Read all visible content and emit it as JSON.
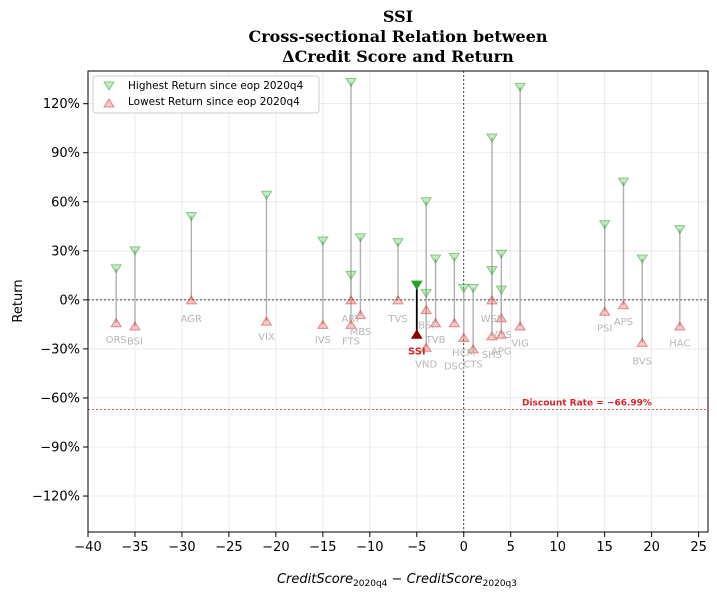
{
  "title_lines": [
    "SSI",
    "Cross-sectional Relation between",
    "ΔCredit Score and Return"
  ],
  "xlabel_base": "CreditScore",
  "xlabel_sub1": "2020q4",
  "xlabel_mid": " − ",
  "xlabel_base2": "CreditScore",
  "xlabel_sub2": "2020q3",
  "ylabel": "Return",
  "legend": {
    "high_label": "Highest Return since eop 2020q4",
    "low_label": "Lowest Return since eop 2020q4"
  },
  "discount_label": "Discount Rate = −66.99%",
  "colors": {
    "high": "#2ca02c",
    "low": "#d62728",
    "stem": "#b0b0b0",
    "main_stem": "#000000",
    "discount": "#d62728"
  },
  "chart_data": {
    "type": "scatter",
    "title": "SSI\nCross-sectional Relation between\nΔCredit Score and Return",
    "xlim": [
      -40,
      26
    ],
    "ylim": [
      -142,
      140
    ],
    "x_ticks": [
      -40,
      -35,
      -30,
      -25,
      -20,
      -15,
      -10,
      -5,
      0,
      5,
      10,
      15,
      20,
      25
    ],
    "x_tick_labels": [
      "−40",
      "−35",
      "−30",
      "−25",
      "−20",
      "−15",
      "−10",
      "−5",
      "0",
      "5",
      "10",
      "15",
      "20",
      "25"
    ],
    "y_ticks": [
      -120,
      -90,
      -60,
      -30,
      0,
      30,
      60,
      90,
      120
    ],
    "y_tick_labels": [
      "−120%",
      "−90%",
      "−60%",
      "−30%",
      "0%",
      "30%",
      "60%",
      "90%",
      "120%"
    ],
    "grid": true,
    "legend_position": "top-left",
    "discount_rate": -66.99,
    "main_ticker": "SSI",
    "points": [
      {
        "ticker": "ORS",
        "x": -37,
        "high": 19,
        "low": -14
      },
      {
        "ticker": "BSI",
        "x": -35,
        "high": 30,
        "low": -16
      },
      {
        "ticker": "AGR",
        "x": -29,
        "high": 51,
        "low": 0
      },
      {
        "ticker": "VIX",
        "x": -21,
        "high": 64,
        "low": -13
      },
      {
        "ticker": "IVS",
        "x": -15,
        "high": 36,
        "low": -15
      },
      {
        "ticker": "ART",
        "x": -12,
        "high": 133,
        "low": 0
      },
      {
        "ticker": "FTS",
        "x": -12,
        "high": 15,
        "low": -15
      },
      {
        "ticker": "MBS",
        "x": -11,
        "high": 38,
        "low": -9
      },
      {
        "ticker": "TVS",
        "x": -7,
        "high": 35,
        "low": 0
      },
      {
        "ticker": "SSI",
        "x": -5,
        "high": 9,
        "low": -21
      },
      {
        "ticker": "BSI",
        "x": -4,
        "high": 4,
        "low": -6
      },
      {
        "ticker": "VND",
        "x": -4,
        "high": 60,
        "low": -29
      },
      {
        "ticker": "TVB",
        "x": -3,
        "high": 25,
        "low": -14
      },
      {
        "ticker": "DSC",
        "x": -1,
        "high": 26,
        "low": -14
      },
      {
        "ticker": "HCM",
        "x": 0,
        "high": 7,
        "low": -23
      },
      {
        "ticker": "CTS",
        "x": 1,
        "high": 7,
        "low": -30
      },
      {
        "ticker": "WSS",
        "x": 3,
        "high": 99,
        "low": 0
      },
      {
        "ticker": "SHS",
        "x": 3,
        "high": 18,
        "low": -22
      },
      {
        "ticker": "VDS",
        "x": 4,
        "high": 6,
        "low": -11
      },
      {
        "ticker": "APG",
        "x": 4,
        "high": 28,
        "low": -21
      },
      {
        "ticker": "VIG",
        "x": 6,
        "high": 130,
        "low": -16
      },
      {
        "ticker": "PSI",
        "x": 15,
        "high": 46,
        "low": -7
      },
      {
        "ticker": "APS",
        "x": 17,
        "high": 72,
        "low": -3
      },
      {
        "ticker": "BVS",
        "x": 19,
        "high": 25,
        "low": -26
      },
      {
        "ticker": "HAC",
        "x": 23,
        "high": 43,
        "low": -16
      }
    ],
    "labels": [
      {
        "text": "ORS",
        "x": -37,
        "y": -24
      },
      {
        "text": "BSI",
        "x": -35,
        "y": -25
      },
      {
        "text": "AGR",
        "x": -29,
        "y": -11
      },
      {
        "text": "VIX",
        "x": -21,
        "y": -22
      },
      {
        "text": "IVS",
        "x": -15,
        "y": -24
      },
      {
        "text": "ART",
        "x": -12,
        "y": -11
      },
      {
        "text": "FTS",
        "x": -12,
        "y": -25
      },
      {
        "text": "MBS",
        "x": -11,
        "y": -19
      },
      {
        "text": "TVS",
        "x": -7,
        "y": -11
      },
      {
        "text": "SSI",
        "x": -5,
        "y": -31
      },
      {
        "text": "BSI",
        "x": -4,
        "y": -15
      },
      {
        "text": "VND",
        "x": -4,
        "y": -39
      },
      {
        "text": "TVB",
        "x": -3,
        "y": -24
      },
      {
        "text": "DSC",
        "x": -1,
        "y": -40
      },
      {
        "text": "HCM",
        "x": 0,
        "y": -32
      },
      {
        "text": "CTS",
        "x": 1,
        "y": -39
      },
      {
        "text": "WSS",
        "x": 3,
        "y": -11
      },
      {
        "text": "SHS",
        "x": 3,
        "y": -33
      },
      {
        "text": "VDS",
        "x": 4,
        "y": -21
      },
      {
        "text": "APG",
        "x": 4,
        "y": -31
      },
      {
        "text": "VIG",
        "x": 6,
        "y": -26
      },
      {
        "text": "PSI",
        "x": 15,
        "y": -17
      },
      {
        "text": "APS",
        "x": 17,
        "y": -13
      },
      {
        "text": "BVS",
        "x": 19,
        "y": -37
      },
      {
        "text": "HAC",
        "x": 23,
        "y": -26
      }
    ]
  }
}
